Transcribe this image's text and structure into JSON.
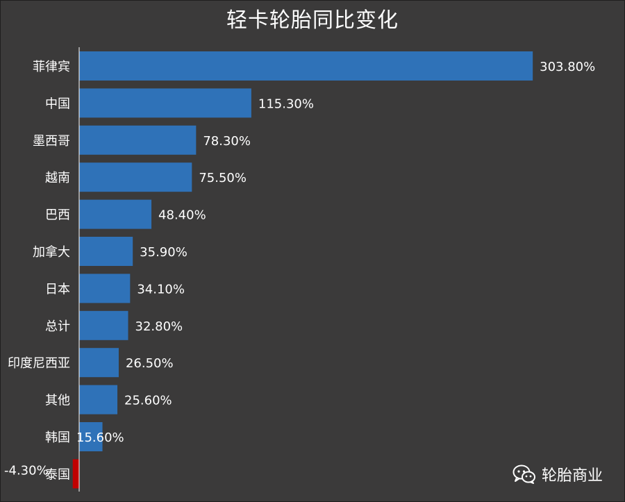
{
  "chart_data": {
    "type": "bar",
    "orientation": "horizontal",
    "title": "轻卡轮胎同比变化",
    "categories": [
      "菲律宾",
      "中国",
      "墨西哥",
      "越南",
      "巴西",
      "加拿大",
      "日本",
      "总计",
      "印度尼西亚",
      "其他",
      "韩国",
      "泰国"
    ],
    "values": [
      303.8,
      115.3,
      78.3,
      75.5,
      48.4,
      35.9,
      34.1,
      32.8,
      26.5,
      25.6,
      15.6,
      -4.3
    ],
    "value_labels": [
      "303.80%",
      "115.30%",
      "78.30%",
      "75.50%",
      "48.40%",
      "35.90%",
      "34.10%",
      "32.80%",
      "26.50%",
      "25.60%",
      "15.60%",
      "-4.30%"
    ],
    "unit": "%",
    "xlim": [
      -4.3,
      303.8
    ],
    "grid": false,
    "colors": {
      "positive": "#2f72b8",
      "negative": "#c00000",
      "background": "#3b3a3a",
      "axis": "#ffffff",
      "text": "#ffffff"
    }
  },
  "watermark": {
    "icon": "wechat-icon",
    "text": "轮胎商业"
  }
}
